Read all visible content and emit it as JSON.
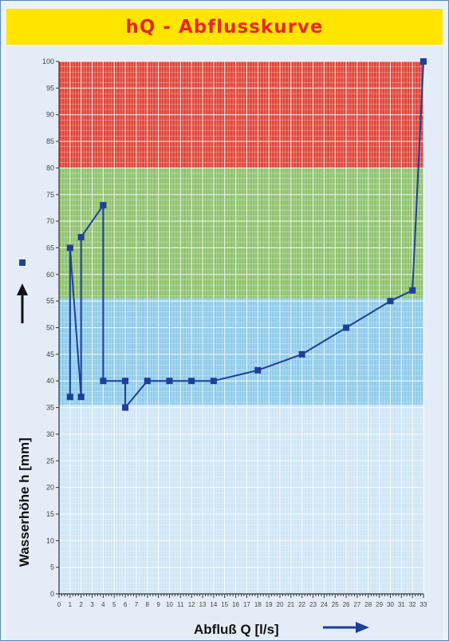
{
  "header": {
    "title": "hQ - Abflusskurve"
  },
  "colors": {
    "title_bg": "#ffe500",
    "title_text": "#e8281c",
    "band_red": "#e0463a",
    "band_green": "#8fc26e",
    "band_blue": "#8fcbea",
    "band_light": "#cfe6f6",
    "series": "#1f3f9a"
  },
  "chart_data": {
    "type": "line",
    "xlabel": "Abfluß Q [l/s]",
    "ylabel": "Wasserhöhe h [mm]",
    "xlim": [
      0,
      33
    ],
    "ylim": [
      0,
      100
    ],
    "x_ticks": [
      0,
      1,
      2,
      3,
      4,
      5,
      6,
      7,
      8,
      9,
      10,
      11,
      12,
      13,
      14,
      15,
      16,
      17,
      18,
      19,
      20,
      21,
      22,
      23,
      24,
      25,
      26,
      27,
      28,
      29,
      30,
      31,
      32,
      33
    ],
    "y_ticks": [
      0,
      5,
      10,
      15,
      20,
      25,
      30,
      35,
      40,
      45,
      50,
      55,
      60,
      65,
      70,
      75,
      80,
      85,
      90,
      95,
      100
    ],
    "grid": true,
    "bands": [
      {
        "from": 80,
        "to": 100,
        "color": "red"
      },
      {
        "from": 55.5,
        "to": 80,
        "color": "green"
      },
      {
        "from": 35.5,
        "to": 55.5,
        "color": "blue"
      },
      {
        "from": 0,
        "to": 35.5,
        "color": "light-blue"
      }
    ],
    "series": [
      {
        "x": [
          1,
          1,
          2,
          2,
          4,
          4,
          6,
          6,
          8,
          10,
          12,
          14,
          18,
          22,
          26,
          30,
          32,
          33
        ],
        "y": [
          37,
          65,
          37,
          67,
          73,
          40,
          40,
          35,
          40,
          40,
          40,
          40,
          42,
          45,
          50,
          55,
          57,
          100
        ]
      }
    ]
  }
}
